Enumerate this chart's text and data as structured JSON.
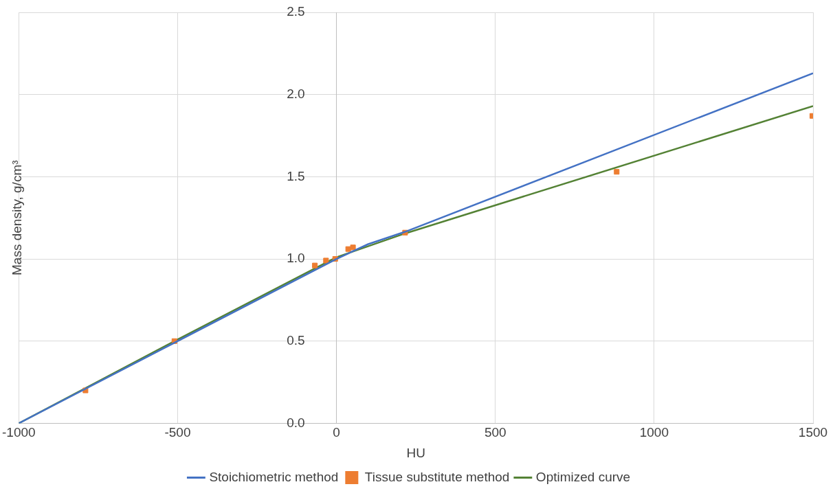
{
  "chart_data": {
    "type": "line",
    "xlabel": "HU",
    "ylabel": "Mass density, g/cm³",
    "xlim": [
      -1000,
      1500
    ],
    "xticks": [
      -1000,
      -500,
      0,
      500,
      1000,
      1500
    ],
    "ylim": [
      0,
      2.5
    ],
    "yticks": [
      {
        "value": 0,
        "label": "0.0"
      },
      {
        "value": 0.5,
        "label": "0.5"
      },
      {
        "value": 1,
        "label": "1.0"
      },
      {
        "value": 1.5,
        "label": "1.5"
      },
      {
        "value": 2,
        "label": "2.0"
      },
      {
        "value": 2.5,
        "label": "2.5"
      }
    ],
    "grid": true,
    "legend": "bottom",
    "line_style": "solid",
    "series": [
      {
        "name": "Stoichiometric method",
        "type": "line",
        "marker": "none",
        "color": "#4472c4",
        "x": [
          -1000,
          0,
          100,
          216,
          1500
        ],
        "values": [
          0,
          1.0,
          1.09,
          1.165,
          2.13
        ]
      },
      {
        "name": "Tissue substitute method",
        "type": "scatter",
        "marker": "square",
        "color": "#ed7d31",
        "x": [
          -790,
          -510,
          -68,
          -33,
          -4,
          37,
          52,
          216,
          882,
          1498
        ],
        "values": [
          0.2,
          0.5,
          0.96,
          0.99,
          1.0,
          1.06,
          1.07,
          1.16,
          1.53,
          1.87
        ]
      },
      {
        "name": "Optimized curve",
        "type": "line",
        "marker": "none",
        "color": "#548235",
        "x": [
          -1000,
          -500,
          0,
          216,
          1500
        ],
        "values": [
          0,
          0.51,
          1.01,
          1.155,
          1.93
        ]
      }
    ]
  }
}
